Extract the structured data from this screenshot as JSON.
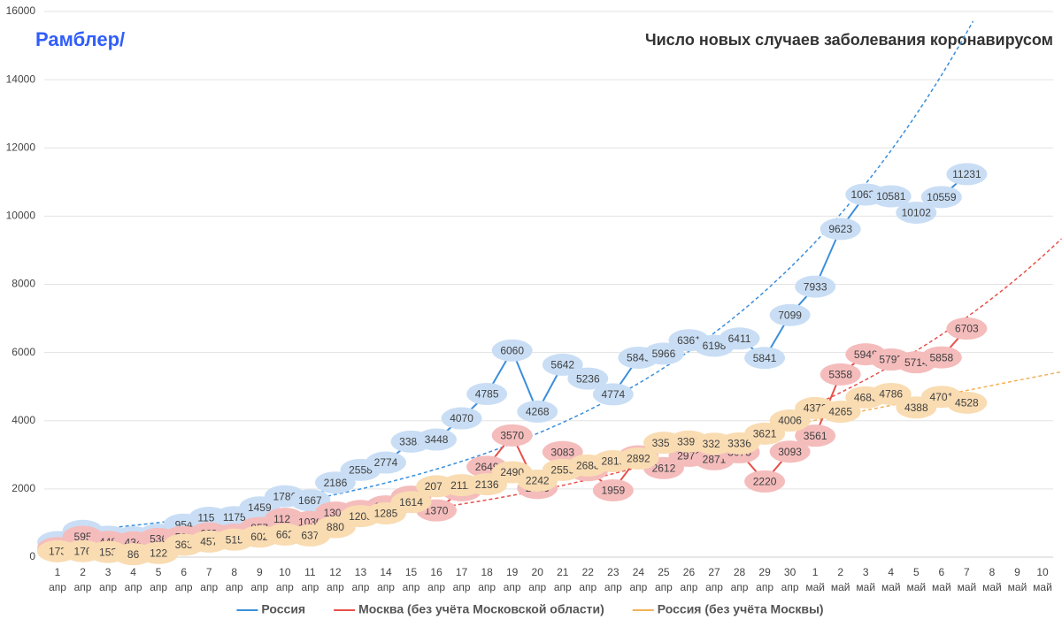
{
  "brand": "Рамблер/",
  "chart_data": {
    "type": "line",
    "title": "Число новых случаев заболевания коронавирусом",
    "categories": [
      "1 апр",
      "2 апр",
      "3 апр",
      "4 апр",
      "5 апр",
      "6 апр",
      "7 апр",
      "8 апр",
      "9 апр",
      "10 апр",
      "11 апр",
      "12 апр",
      "13 апр",
      "14 апр",
      "15 апр",
      "16 апр",
      "17 апр",
      "18 апр",
      "19 апр",
      "20 апр",
      "21 апр",
      "22 апр",
      "23 апр",
      "24 апр",
      "25 апр",
      "26 апр",
      "27 апр",
      "28 апр",
      "29 апр",
      "30 апр",
      "1 май",
      "2 май",
      "3 май",
      "4 май",
      "5 май",
      "6 май",
      "7 май",
      "8 май",
      "9 май",
      "10 май"
    ],
    "series": [
      {
        "name": "Россия",
        "color": "#3b8fdc",
        "label_color": "#c9def5",
        "trend": "exponential",
        "values": [
          440,
          771,
          601,
          582,
          658,
          954,
          1154,
          1175,
          1459,
          1786,
          1667,
          2186,
          2558,
          2774,
          3388,
          3448,
          4070,
          4785,
          6060,
          4268,
          5642,
          5236,
          4774,
          5849,
          5966,
          6361,
          6198,
          6411,
          5841,
          7099,
          7933,
          9623,
          10633,
          10581,
          10102,
          10559,
          11231,
          null,
          null,
          null
        ]
      },
      {
        "name": "Москва (без учёта Московской области)",
        "color": "#e8504a",
        "label_color": "#f5bcbc",
        "trend": "exponential",
        "values": [
          267,
          595,
          448,
          434,
          536,
          591,
          697,
          660,
          857,
          1124,
          1030,
          1306,
          1355,
          1489,
          1774,
          1370,
          1959,
          2649,
          3570,
          2026,
          3083,
          2548,
          1959,
          2957,
          2612,
          2971,
          2871,
          3075,
          2220,
          3093,
          3561,
          5358,
          5948,
          5795,
          5714,
          5858,
          6703,
          null,
          null,
          null
        ]
      },
      {
        "name": "Россия (без учёта Москвы)",
        "color": "#f2b157",
        "label_color": "#f9dcb2",
        "trend": "linear",
        "values": [
          173,
          176,
          153,
          86,
          122,
          363,
          457,
          515,
          602,
          662,
          637,
          880,
          1203,
          1285,
          1614,
          2078,
          2111,
          2136,
          2490,
          2242,
          2559,
          2688,
          2815,
          2892,
          3354,
          3390,
          3327,
          3336,
          3621,
          4006,
          4372,
          4265,
          4685,
          4786,
          4388,
          4701,
          4528,
          null,
          null,
          null
        ]
      }
    ],
    "ylim": [
      0,
      16000
    ],
    "yticks": [
      0,
      2000,
      4000,
      6000,
      8000,
      10000,
      12000,
      14000,
      16000
    ],
    "grid": true,
    "legend": "bottom"
  }
}
